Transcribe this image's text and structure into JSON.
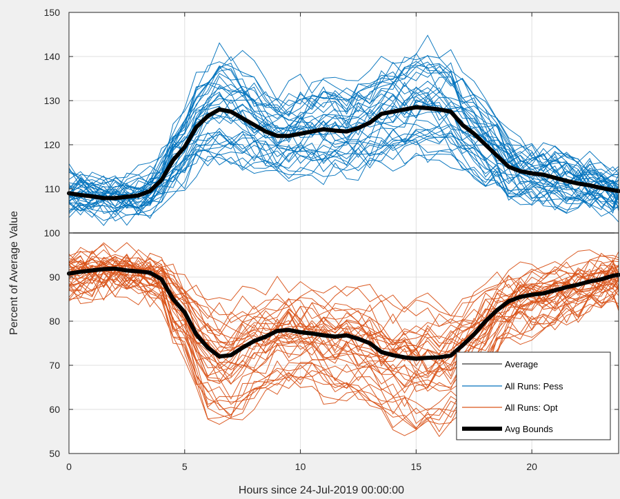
{
  "chart_data": {
    "type": "line",
    "xlabel": "Hours since 24-Jul-2019 00:00:00",
    "ylabel": "Percent of Average Value",
    "xlim": [
      0,
      23.75
    ],
    "ylim": [
      50,
      150
    ],
    "xticks": [
      0,
      5,
      10,
      15,
      20
    ],
    "yticks": [
      50,
      60,
      70,
      80,
      90,
      100,
      110,
      120,
      130,
      140,
      150
    ],
    "grid": true,
    "legend_position": "bottom-right",
    "reference_line": {
      "name": "Average",
      "y": 100,
      "color": "#000000"
    },
    "x": [
      0,
      0.5,
      1,
      1.5,
      2,
      2.5,
      3,
      3.5,
      4,
      4.5,
      5,
      5.5,
      6,
      6.5,
      7,
      7.5,
      8,
      8.5,
      9,
      9.5,
      10,
      10.5,
      11,
      11.5,
      12,
      12.5,
      13,
      13.5,
      14,
      14.5,
      15,
      15.5,
      16,
      16.5,
      17,
      17.5,
      18,
      18.5,
      19,
      19.5,
      20,
      20.5,
      21,
      21.5,
      22,
      22.5,
      23,
      23.5,
      23.75
    ],
    "series": [
      {
        "name": "Avg Bounds",
        "group": "pess",
        "color": "#000000",
        "values": [
          109,
          108.6,
          108.3,
          107.9,
          107.9,
          108.2,
          108.5,
          109.5,
          112,
          116.5,
          119.5,
          124,
          126.5,
          128,
          127.5,
          126,
          124.5,
          123,
          122,
          122,
          122.5,
          123,
          123.5,
          123.2,
          123,
          123.8,
          125,
          127,
          127.5,
          128,
          128.5,
          128.3,
          128,
          127.5,
          124.5,
          122.5,
          120,
          117.5,
          115,
          114,
          113.5,
          113.2,
          112.5,
          111.8,
          111.2,
          110.8,
          110.2,
          109.7,
          109.5
        ]
      },
      {
        "name": "Avg Bounds",
        "group": "opt",
        "color": "#000000",
        "values": [
          90.8,
          91.2,
          91.5,
          91.8,
          91.9,
          91.5,
          91.3,
          91,
          89.5,
          85,
          82,
          77,
          74,
          72,
          72.3,
          74,
          75.5,
          76.5,
          77.8,
          78,
          77.5,
          77.2,
          76.8,
          76.5,
          76.8,
          76,
          75,
          73,
          72.3,
          71.8,
          71.5,
          71.7,
          71.8,
          72.2,
          74.5,
          77,
          80,
          82.5,
          84.5,
          85.5,
          86,
          86.3,
          87,
          87.7,
          88.3,
          89,
          89.5,
          90.3,
          90.5
        ]
      }
    ],
    "run_bundles": [
      {
        "name": "All Runs: Pess",
        "color": "#0072BD",
        "runs": 38,
        "envelope_high": 150,
        "envelope_low": 100
      },
      {
        "name": "All Runs: Opt",
        "color": "#D95319",
        "runs": 38,
        "envelope_high": 100,
        "envelope_low": 50
      }
    ],
    "legend": [
      "Average",
      "All Runs: Pess",
      "All Runs: Opt",
      "Avg Bounds"
    ]
  }
}
